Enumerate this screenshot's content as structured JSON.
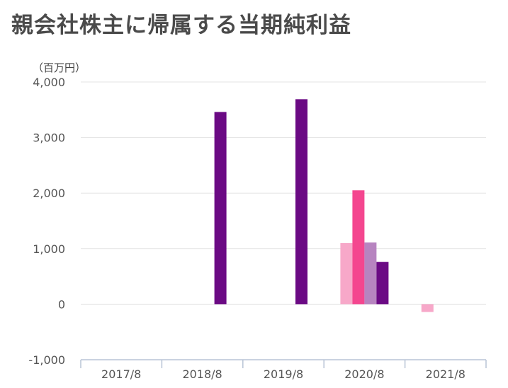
{
  "chart_data": {
    "type": "bar",
    "title": "親会社株主に帰属する当期純利益",
    "unit_label": "（百万円）",
    "categories": [
      "2017/8",
      "2018/8",
      "2019/8",
      "2020/8",
      "2021/8"
    ],
    "series": [
      {
        "color": "#f7a8c9",
        "values": [
          null,
          null,
          null,
          1100,
          -140
        ]
      },
      {
        "color": "#f4468f",
        "values": [
          null,
          null,
          null,
          2050,
          null
        ]
      },
      {
        "color": "#b784c0",
        "values": [
          null,
          null,
          null,
          1110,
          null
        ]
      },
      {
        "color": "#6b0a84",
        "values": [
          null,
          3460,
          3690,
          760,
          null
        ]
      }
    ],
    "ylim": [
      -1000,
      4000
    ],
    "yticks": [
      4000,
      3000,
      2000,
      1000,
      0,
      -1000
    ],
    "ytick_labels": [
      "4,000",
      "3,000",
      "2,000",
      "1,000",
      "0",
      "-1,000"
    ],
    "grid": true
  }
}
